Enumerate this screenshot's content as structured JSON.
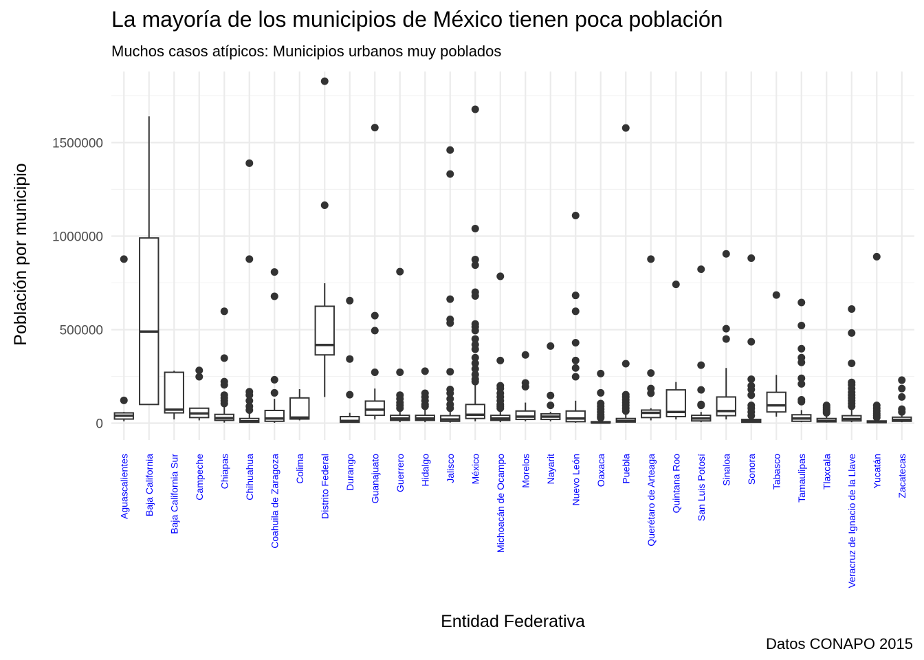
{
  "chart_data": {
    "type": "boxplot",
    "title": "La mayoría de los municipios de México tienen poca población",
    "subtitle": "Muchos casos atípicos: Municipios urbanos muy poblados",
    "caption": "Datos CONAPO 2015",
    "xlabel": "Entidad Federativa",
    "ylabel": "Población por municipio",
    "ylim": [
      -90000,
      1880000
    ],
    "yticks": [
      0,
      500000,
      1000000,
      1500000
    ],
    "grid": true,
    "tick_color": "#0000ff",
    "box_color": "#333333",
    "categories": [
      "Aguascalientes",
      "Baja California",
      "Baja California Sur",
      "Campeche",
      "Chiapas",
      "Chihuahua",
      "Coahuila de Zaragoza",
      "Colima",
      "Distrito Federal",
      "Durango",
      "Guanajuato",
      "Guerrero",
      "Hidalgo",
      "Jalisco",
      "México",
      "Michoacán de Ocampo",
      "Morelos",
      "Nayarit",
      "Nuevo León",
      "Oaxaca",
      "Puebla",
      "Querétaro de Arteaga",
      "Quintana Roo",
      "San Luis Potosí",
      "Sinaloa",
      "Sonora",
      "Tabasco",
      "Tamaulipas",
      "Tlaxcala",
      "Veracruz de Ignacio de la Llave",
      "Yucatán",
      "Zacatecas"
    ],
    "boxes": [
      {
        "min": 10000,
        "q1": 22000,
        "median": 40000,
        "q3": 55000,
        "max": 60000,
        "outliers": [
          877000,
          122000
        ]
      },
      {
        "min": 100000,
        "q1": 100000,
        "median": 490000,
        "q3": 990000,
        "max": 1640000,
        "outliers": []
      },
      {
        "min": 20000,
        "q1": 55000,
        "median": 72000,
        "q3": 272000,
        "max": 280000,
        "outliers": []
      },
      {
        "min": 15000,
        "q1": 30000,
        "median": 52000,
        "q3": 80000,
        "max": 82000,
        "outliers": [
          282000,
          248000
        ]
      },
      {
        "min": 3000,
        "q1": 15000,
        "median": 27000,
        "q3": 47000,
        "max": 90000,
        "outliers": [
          598000,
          348000,
          222000,
          205000,
          150000,
          135000,
          120000,
          105000
        ]
      },
      {
        "min": 2000,
        "q1": 5000,
        "median": 10000,
        "q3": 25000,
        "max": 55000,
        "outliers": [
          1390000,
          877000,
          168000,
          150000,
          120000,
          90000,
          70000
        ]
      },
      {
        "min": 2000,
        "q1": 10000,
        "median": 25000,
        "q3": 68000,
        "max": 130000,
        "outliers": [
          808000,
          678000,
          232000,
          162000
        ]
      },
      {
        "min": 15000,
        "q1": 22000,
        "median": 30000,
        "q3": 135000,
        "max": 182000,
        "outliers": []
      },
      {
        "min": 140000,
        "q1": 365000,
        "median": 418000,
        "q3": 625000,
        "max": 748000,
        "outliers": [
          1828000,
          1165000
        ]
      },
      {
        "min": 2000,
        "q1": 5000,
        "median": 12000,
        "q3": 35000,
        "max": 55000,
        "outliers": [
          655000,
          343000,
          152000
        ]
      },
      {
        "min": 20000,
        "q1": 42000,
        "median": 72000,
        "q3": 118000,
        "max": 185000,
        "outliers": [
          1580000,
          575000,
          495000,
          272000
        ]
      },
      {
        "min": 5000,
        "q1": 15000,
        "median": 25000,
        "q3": 42000,
        "max": 75000,
        "outliers": [
          810000,
          272000,
          150000,
          130000,
          110000,
          95000,
          80000
        ]
      },
      {
        "min": 5000,
        "q1": 15000,
        "median": 25000,
        "q3": 42000,
        "max": 75000,
        "outliers": [
          278000,
          160000,
          140000,
          120000,
          100000,
          90000
        ]
      },
      {
        "min": 3000,
        "q1": 10000,
        "median": 20000,
        "q3": 40000,
        "max": 75000,
        "outliers": [
          1460000,
          1332000,
          663000,
          555000,
          535000,
          275000,
          180000,
          160000,
          130000,
          100000,
          80000
        ]
      },
      {
        "min": 10000,
        "q1": 25000,
        "median": 45000,
        "q3": 100000,
        "max": 210000,
        "outliers": [
          1678000,
          1040000,
          875000,
          845000,
          700000,
          680000,
          530000,
          515000,
          495000,
          450000,
          420000,
          395000,
          350000,
          320000,
          290000,
          260000,
          235000,
          222000
        ]
      },
      {
        "min": 5000,
        "q1": 15000,
        "median": 25000,
        "q3": 42000,
        "max": 75000,
        "outliers": [
          785000,
          335000,
          200000,
          185000,
          160000,
          140000,
          120000,
          100000,
          90000,
          80000
        ]
      },
      {
        "min": 10000,
        "q1": 20000,
        "median": 35000,
        "q3": 65000,
        "max": 110000,
        "outliers": [
          365000,
          215000,
          195000
        ]
      },
      {
        "min": 10000,
        "q1": 20000,
        "median": 35000,
        "q3": 50000,
        "max": 60000,
        "outliers": [
          412000,
          148000,
          95000
        ]
      },
      {
        "min": 2000,
        "q1": 8000,
        "median": 25000,
        "q3": 65000,
        "max": 120000,
        "outliers": [
          1110000,
          683000,
          598000,
          430000,
          335000,
          295000,
          248000
        ]
      },
      {
        "min": 100,
        "q1": 1500,
        "median": 3000,
        "q3": 8000,
        "max": 18000,
        "outliers": [
          265000,
          162000,
          105000,
          90000,
          75000,
          60000,
          45000,
          35000,
          28000
        ]
      },
      {
        "min": 2000,
        "q1": 6000,
        "median": 12000,
        "q3": 25000,
        "max": 50000,
        "outliers": [
          1578000,
          318000,
          152000,
          140000,
          125000,
          110000,
          95000,
          80000,
          65000
        ]
      },
      {
        "min": 15000,
        "q1": 30000,
        "median": 55000,
        "q3": 70000,
        "max": 80000,
        "outliers": [
          877000,
          268000,
          185000,
          160000
        ]
      },
      {
        "min": 20000,
        "q1": 35000,
        "median": 60000,
        "q3": 178000,
        "max": 220000,
        "outliers": [
          742000
        ]
      },
      {
        "min": 5000,
        "q1": 12000,
        "median": 25000,
        "q3": 42000,
        "max": 60000,
        "outliers": [
          823000,
          310000,
          178000,
          100000,
          95000
        ]
      },
      {
        "min": 20000,
        "q1": 40000,
        "median": 65000,
        "q3": 140000,
        "max": 295000,
        "outliers": [
          905000,
          505000,
          450000
        ]
      },
      {
        "min": 2000,
        "q1": 5000,
        "median": 10000,
        "q3": 20000,
        "max": 30000,
        "outliers": [
          882000,
          435000,
          235000,
          200000,
          180000,
          150000,
          95000,
          80000,
          60000,
          40000
        ]
      },
      {
        "min": 35000,
        "q1": 60000,
        "median": 95000,
        "q3": 165000,
        "max": 258000,
        "outliers": [
          685000
        ]
      },
      {
        "min": 5000,
        "q1": 10000,
        "median": 25000,
        "q3": 45000,
        "max": 70000,
        "outliers": [
          645000,
          522000,
          398000,
          350000,
          325000,
          240000,
          210000,
          125000,
          115000
        ]
      },
      {
        "min": 3000,
        "q1": 7000,
        "median": 12000,
        "q3": 25000,
        "max": 45000,
        "outliers": [
          95000,
          85000,
          75000,
          65000,
          55000
        ]
      },
      {
        "min": 5000,
        "q1": 12000,
        "median": 22000,
        "q3": 40000,
        "max": 75000,
        "outliers": [
          610000,
          482000,
          320000,
          218000,
          205000,
          185000,
          165000,
          150000,
          135000,
          120000,
          105000,
          90000
        ]
      },
      {
        "min": 1000,
        "q1": 3000,
        "median": 6000,
        "q3": 12000,
        "max": 22000,
        "outliers": [
          890000,
          95000,
          80000,
          65000,
          50000,
          40000,
          30000
        ]
      },
      {
        "min": 5000,
        "q1": 10000,
        "median": 18000,
        "q3": 32000,
        "max": 40000,
        "outliers": [
          230000,
          185000,
          140000,
          75000,
          60000
        ]
      }
    ]
  }
}
